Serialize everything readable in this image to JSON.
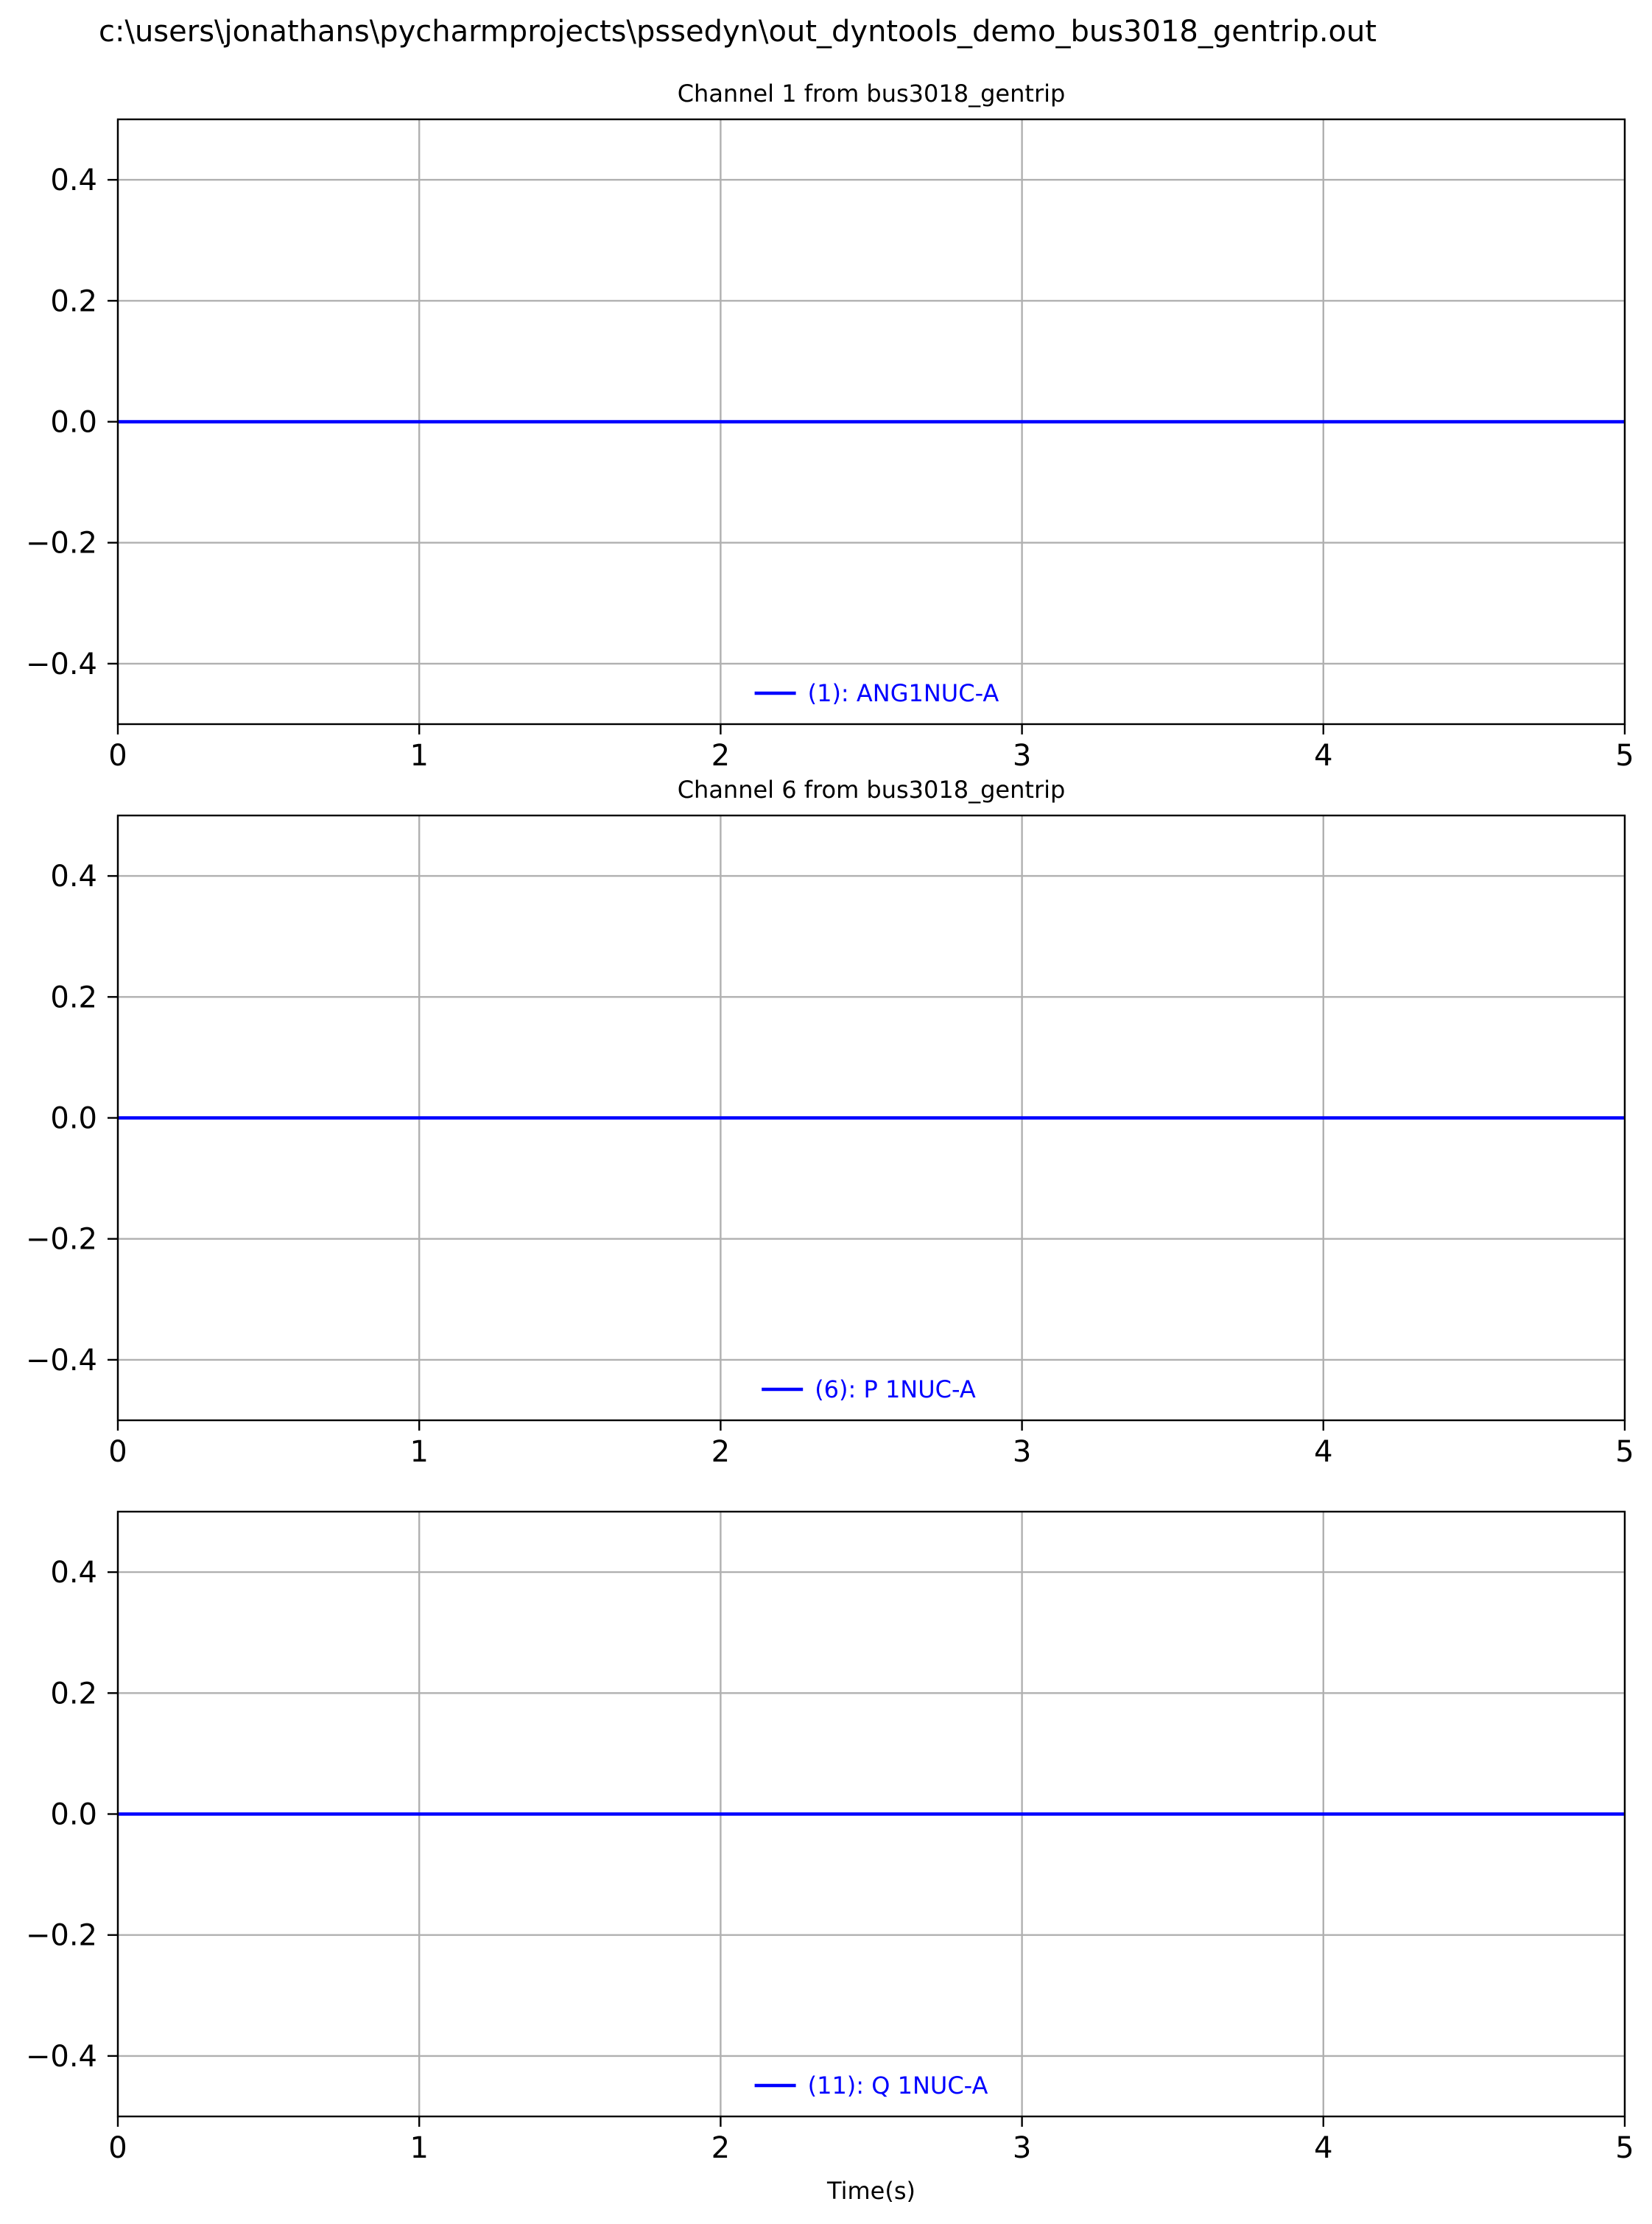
{
  "figure": {
    "suptitle": "c:\\users\\jonathans\\pycharmprojects\\pssedyn\\out_dyntools_demo_bus3018_gentrip.out"
  },
  "colors": {
    "series": "#0000ff",
    "grid": "#b0b0b0",
    "axes": "#000000",
    "background": "#ffffff"
  },
  "chart_data": [
    {
      "type": "line",
      "title": "Channel 1 from bus3018_gentrip",
      "xlabel": "",
      "ylabel": "",
      "xlim": [
        0,
        5
      ],
      "ylim": [
        -0.5,
        0.5
      ],
      "xticks": [
        0,
        1,
        2,
        3,
        4,
        5
      ],
      "xtick_labels": [
        "0",
        "1",
        "2",
        "3",
        "4",
        "5"
      ],
      "yticks": [
        -0.4,
        -0.2,
        0.0,
        0.2,
        0.4
      ],
      "ytick_labels": [
        "−0.4",
        "−0.2",
        "0.0",
        "0.2",
        "0.4"
      ],
      "grid": true,
      "legend_position": "lower-center",
      "series": [
        {
          "name": "(1): ANG1NUC-A",
          "x": [
            0,
            5
          ],
          "y": [
            0.0,
            0.0
          ]
        }
      ]
    },
    {
      "type": "line",
      "title": "Channel 6 from bus3018_gentrip",
      "xlabel": "",
      "ylabel": "",
      "xlim": [
        0,
        5
      ],
      "ylim": [
        -0.5,
        0.5
      ],
      "xticks": [
        0,
        1,
        2,
        3,
        4,
        5
      ],
      "xtick_labels": [
        "0",
        "1",
        "2",
        "3",
        "4",
        "5"
      ],
      "yticks": [
        -0.4,
        -0.2,
        0.0,
        0.2,
        0.4
      ],
      "ytick_labels": [
        "−0.4",
        "−0.2",
        "0.0",
        "0.2",
        "0.4"
      ],
      "grid": true,
      "legend_position": "lower-center",
      "series": [
        {
          "name": "(6): P 1NUC-A",
          "x": [
            0,
            5
          ],
          "y": [
            0.0,
            0.0
          ]
        }
      ]
    },
    {
      "type": "line",
      "title": "",
      "xlabel": "Time(s)",
      "ylabel": "",
      "xlim": [
        0,
        5
      ],
      "ylim": [
        -0.5,
        0.5
      ],
      "xticks": [
        0,
        1,
        2,
        3,
        4,
        5
      ],
      "xtick_labels": [
        "0",
        "1",
        "2",
        "3",
        "4",
        "5"
      ],
      "yticks": [
        -0.4,
        -0.2,
        0.0,
        0.2,
        0.4
      ],
      "ytick_labels": [
        "−0.4",
        "−0.2",
        "0.0",
        "0.2",
        "0.4"
      ],
      "grid": true,
      "legend_position": "lower-center",
      "series": [
        {
          "name": "(11): Q 1NUC-A",
          "x": [
            0,
            5
          ],
          "y": [
            0.0,
            0.0
          ]
        }
      ]
    }
  ]
}
